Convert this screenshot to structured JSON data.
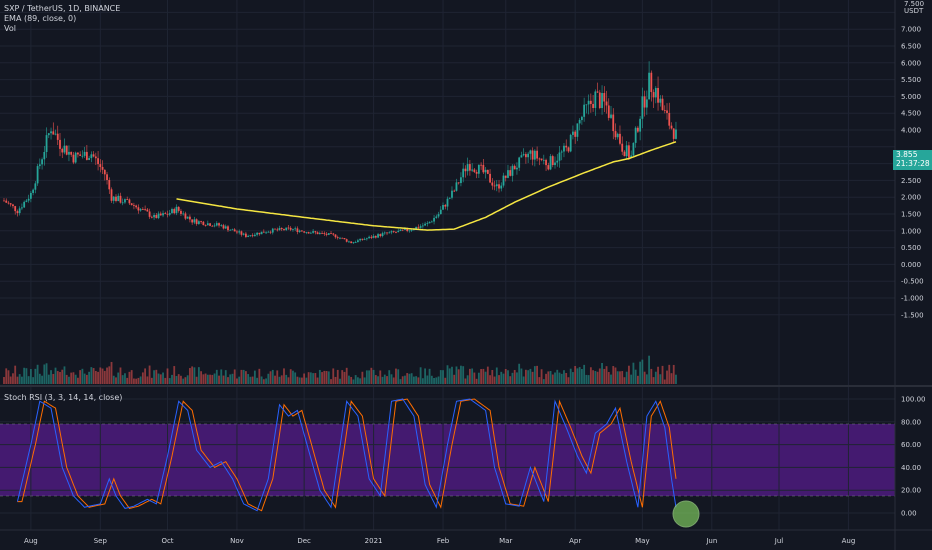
{
  "header": {
    "symbol_line": "SXP / TetherUS, 1D, BINANCE",
    "ema_line": "EMA (89, close, 0)",
    "vol_line": "Vol",
    "stoch_line": "Stoch RSI (3, 3, 14, 14, close)"
  },
  "price_axis": {
    "unit": "USDT",
    "top_partial": "7.500",
    "ticks": [
      "7.000",
      "6.500",
      "6.000",
      "5.500",
      "5.000",
      "4.500",
      "4.000",
      "3.500",
      "3.000",
      "2.500",
      "2.000",
      "1.500",
      "1.000",
      "0.500",
      "0.000",
      "-0.500",
      "-1.000",
      "-1.500"
    ],
    "last_price": "3.855",
    "countdown": "21:37:28"
  },
  "stoch_axis": {
    "ticks": [
      "100.00",
      "80.00",
      "60.00",
      "40.00",
      "20.00",
      "0.00"
    ]
  },
  "time_axis": {
    "labels": [
      "Aug",
      "Sep",
      "Oct",
      "Nov",
      "Dec",
      "2021",
      "Feb",
      "Mar",
      "Apr",
      "May",
      "Jun",
      "Jul",
      "Aug"
    ]
  },
  "colors": {
    "background": "#131722",
    "grid": "#1f2433",
    "text": "#d1d4dc",
    "up": "#26a69a",
    "down": "#ef5350",
    "ema": "#f5e642",
    "stoch_k": "#2962ff",
    "stoch_d": "#ff6d00",
    "band": "#4a1b79",
    "highlight": "#7cc55d"
  },
  "chart_data": [
    {
      "type": "candlestick",
      "title": "SXP / TetherUS, 1D, BINANCE",
      "x_range": [
        "2020-07-20",
        "2021-08-20"
      ],
      "y_range": [
        -1.5,
        7.5
      ],
      "price_key_points": [
        [
          "2020-07-20",
          1.9
        ],
        [
          "2020-07-26",
          1.6
        ],
        [
          "2020-08-01",
          2.1
        ],
        [
          "2020-08-05",
          3.0
        ],
        [
          "2020-08-10",
          4.1
        ],
        [
          "2020-08-14",
          3.6
        ],
        [
          "2020-08-20",
          3.2
        ],
        [
          "2020-08-28",
          3.3
        ],
        [
          "2020-09-03",
          2.7
        ],
        [
          "2020-09-06",
          2.0
        ],
        [
          "2020-09-15",
          1.8
        ],
        [
          "2020-09-25",
          1.4
        ],
        [
          "2020-10-01",
          1.5
        ],
        [
          "2020-10-05",
          1.65
        ],
        [
          "2020-10-12",
          1.3
        ],
        [
          "2020-10-25",
          1.15
        ],
        [
          "2020-11-05",
          0.85
        ],
        [
          "2020-11-15",
          1.0
        ],
        [
          "2020-11-25",
          1.05
        ],
        [
          "2020-12-05",
          0.95
        ],
        [
          "2020-12-15",
          0.85
        ],
        [
          "2020-12-22",
          0.65
        ],
        [
          "2021-01-05",
          0.9
        ],
        [
          "2021-01-15",
          1.0
        ],
        [
          "2021-01-25",
          1.2
        ],
        [
          "2021-01-30",
          1.5
        ],
        [
          "2021-02-06",
          2.2
        ],
        [
          "2021-02-12",
          3.0
        ],
        [
          "2021-02-18",
          2.8
        ],
        [
          "2021-02-25",
          2.3
        ],
        [
          "2021-03-05",
          2.9
        ],
        [
          "2021-03-12",
          3.3
        ],
        [
          "2021-03-20",
          3.0
        ],
        [
          "2021-03-28",
          3.4
        ],
        [
          "2021-04-04",
          4.4
        ],
        [
          "2021-04-10",
          5.0
        ],
        [
          "2021-04-15",
          4.7
        ],
        [
          "2021-04-22",
          3.5
        ],
        [
          "2021-04-26",
          3.2
        ],
        [
          "2021-04-30",
          4.5
        ],
        [
          "2021-05-04",
          5.4
        ],
        [
          "2021-05-07",
          5.2
        ],
        [
          "2021-05-10",
          4.6
        ],
        [
          "2021-05-13",
          4.2
        ],
        [
          "2021-05-16",
          3.85
        ]
      ],
      "ema89_key_points": [
        [
          "2020-10-05",
          1.95
        ],
        [
          "2020-11-01",
          1.65
        ],
        [
          "2020-12-01",
          1.4
        ],
        [
          "2021-01-01",
          1.15
        ],
        [
          "2021-01-25",
          1.02
        ],
        [
          "2021-02-06",
          1.05
        ],
        [
          "2021-02-20",
          1.4
        ],
        [
          "2021-03-05",
          1.85
        ],
        [
          "2021-03-20",
          2.3
        ],
        [
          "2021-04-04",
          2.7
        ],
        [
          "2021-04-18",
          3.05
        ],
        [
          "2021-04-25",
          3.15
        ],
        [
          "2021-05-05",
          3.4
        ],
        [
          "2021-05-16",
          3.65
        ]
      ]
    },
    {
      "type": "bar",
      "title": "Vol",
      "note": "volume histogram, colored by candle direction"
    },
    {
      "type": "line",
      "title": "Stoch RSI (3, 3, 14, 14, close)",
      "y_range": [
        -5,
        105
      ],
      "bands": [
        20,
        80
      ],
      "k_key_points": [
        [
          "2020-07-26",
          10
        ],
        [
          "2020-08-01",
          60
        ],
        [
          "2020-08-05",
          98
        ],
        [
          "2020-08-10",
          92
        ],
        [
          "2020-08-15",
          40
        ],
        [
          "2020-08-20",
          15
        ],
        [
          "2020-08-25",
          5
        ],
        [
          "2020-09-01",
          8
        ],
        [
          "2020-09-05",
          30
        ],
        [
          "2020-09-08",
          15
        ],
        [
          "2020-09-12",
          4
        ],
        [
          "2020-09-16",
          6
        ],
        [
          "2020-09-22",
          12
        ],
        [
          "2020-09-26",
          8
        ],
        [
          "2020-10-01",
          50
        ],
        [
          "2020-10-06",
          98
        ],
        [
          "2020-10-10",
          90
        ],
        [
          "2020-10-14",
          55
        ],
        [
          "2020-10-20",
          40
        ],
        [
          "2020-10-25",
          45
        ],
        [
          "2020-10-30",
          30
        ],
        [
          "2020-11-04",
          8
        ],
        [
          "2020-11-10",
          2
        ],
        [
          "2020-11-15",
          30
        ],
        [
          "2020-11-20",
          95
        ],
        [
          "2020-11-24",
          85
        ],
        [
          "2020-11-28",
          90
        ],
        [
          "2020-12-03",
          55
        ],
        [
          "2020-12-08",
          20
        ],
        [
          "2020-12-13",
          5
        ],
        [
          "2020-12-20",
          98
        ],
        [
          "2020-12-25",
          85
        ],
        [
          "2020-12-30",
          30
        ],
        [
          "2021-01-04",
          15
        ],
        [
          "2021-01-09",
          98
        ],
        [
          "2021-01-14",
          100
        ],
        [
          "2021-01-19",
          85
        ],
        [
          "2021-01-24",
          25
        ],
        [
          "2021-01-29",
          5
        ],
        [
          "2021-02-03",
          60
        ],
        [
          "2021-02-07",
          98
        ],
        [
          "2021-02-13",
          100
        ],
        [
          "2021-02-20",
          90
        ],
        [
          "2021-02-24",
          40
        ],
        [
          "2021-03-01",
          8
        ],
        [
          "2021-03-07",
          6
        ],
        [
          "2021-03-12",
          40
        ],
        [
          "2021-03-18",
          10
        ],
        [
          "2021-03-23",
          98
        ],
        [
          "2021-03-28",
          75
        ],
        [
          "2021-04-02",
          50
        ],
        [
          "2021-04-06",
          35
        ],
        [
          "2021-04-10",
          70
        ],
        [
          "2021-04-15",
          78
        ],
        [
          "2021-04-19",
          92
        ],
        [
          "2021-04-24",
          45
        ],
        [
          "2021-04-29",
          5
        ],
        [
          "2021-05-03",
          85
        ],
        [
          "2021-05-07",
          98
        ],
        [
          "2021-05-11",
          75
        ],
        [
          "2021-05-14",
          30
        ],
        [
          "2021-05-16",
          5
        ]
      ]
    }
  ]
}
